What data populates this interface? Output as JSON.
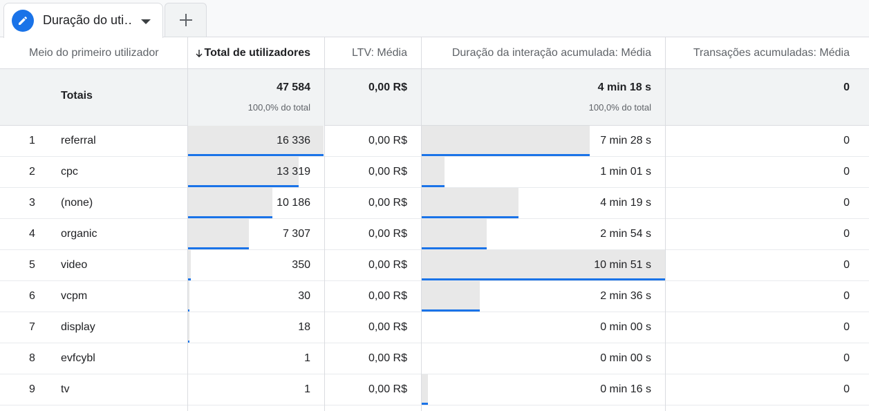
{
  "tabs": [
    {
      "label": "Duração do uti…",
      "active": true,
      "icon": "pencil-icon"
    }
  ],
  "add_tab_icon": "plus-icon",
  "accent_color": "#1a73e8",
  "table": {
    "columns": [
      {
        "label": "Meio do primeiro utilizador"
      },
      {
        "label": "Total de utilizadores",
        "sorted": "desc",
        "sort_icon": "arrow-down-icon"
      },
      {
        "label": "LTV: Média"
      },
      {
        "label": "Duração da interação acumulada: Média"
      },
      {
        "label": "Transações acumuladas: Média"
      }
    ],
    "totals": {
      "label": "Totais",
      "users": "47 584",
      "users_pct": "100,0% do total",
      "ltv": "0,00 R$",
      "duration": "4 min 18 s",
      "duration_pct": "100,0% do total",
      "transactions": "0"
    },
    "rows": [
      {
        "rank": "1",
        "medium": "referral",
        "users": "16 336",
        "users_share": 1.0,
        "ltv": "0,00 R$",
        "duration": "7 min 28 s",
        "duration_share": 0.689,
        "transactions": "0"
      },
      {
        "rank": "2",
        "medium": "cpc",
        "users": "13 319",
        "users_share": 0.815,
        "ltv": "0,00 R$",
        "duration": "1 min 01 s",
        "duration_share": 0.094,
        "transactions": "0"
      },
      {
        "rank": "3",
        "medium": "(none)",
        "users": "10 186",
        "users_share": 0.624,
        "ltv": "0,00 R$",
        "duration": "4 min 19 s",
        "duration_share": 0.398,
        "transactions": "0"
      },
      {
        "rank": "4",
        "medium": "organic",
        "users": "7 307",
        "users_share": 0.447,
        "ltv": "0,00 R$",
        "duration": "2 min 54 s",
        "duration_share": 0.268,
        "transactions": "0"
      },
      {
        "rank": "5",
        "medium": "video",
        "users": "350",
        "users_share": 0.021,
        "ltv": "0,00 R$",
        "duration": "10 min 51 s",
        "duration_share": 1.0,
        "transactions": "0"
      },
      {
        "rank": "6",
        "medium": "vcpm",
        "users": "30",
        "users_share": 0.002,
        "ltv": "0,00 R$",
        "duration": "2 min 36 s",
        "duration_share": 0.24,
        "transactions": "0"
      },
      {
        "rank": "7",
        "medium": "display",
        "users": "18",
        "users_share": 0.001,
        "ltv": "0,00 R$",
        "duration": "0 min 00 s",
        "duration_share": 0.0,
        "transactions": "0"
      },
      {
        "rank": "8",
        "medium": "evfcybl",
        "users": "1",
        "users_share": 0.0,
        "ltv": "0,00 R$",
        "duration": "0 min 00 s",
        "duration_share": 0.0,
        "transactions": "0"
      },
      {
        "rank": "9",
        "medium": "tv",
        "users": "1",
        "users_share": 0.0,
        "ltv": "0,00 R$",
        "duration": "0 min 16 s",
        "duration_share": 0.025,
        "transactions": "0"
      }
    ]
  }
}
